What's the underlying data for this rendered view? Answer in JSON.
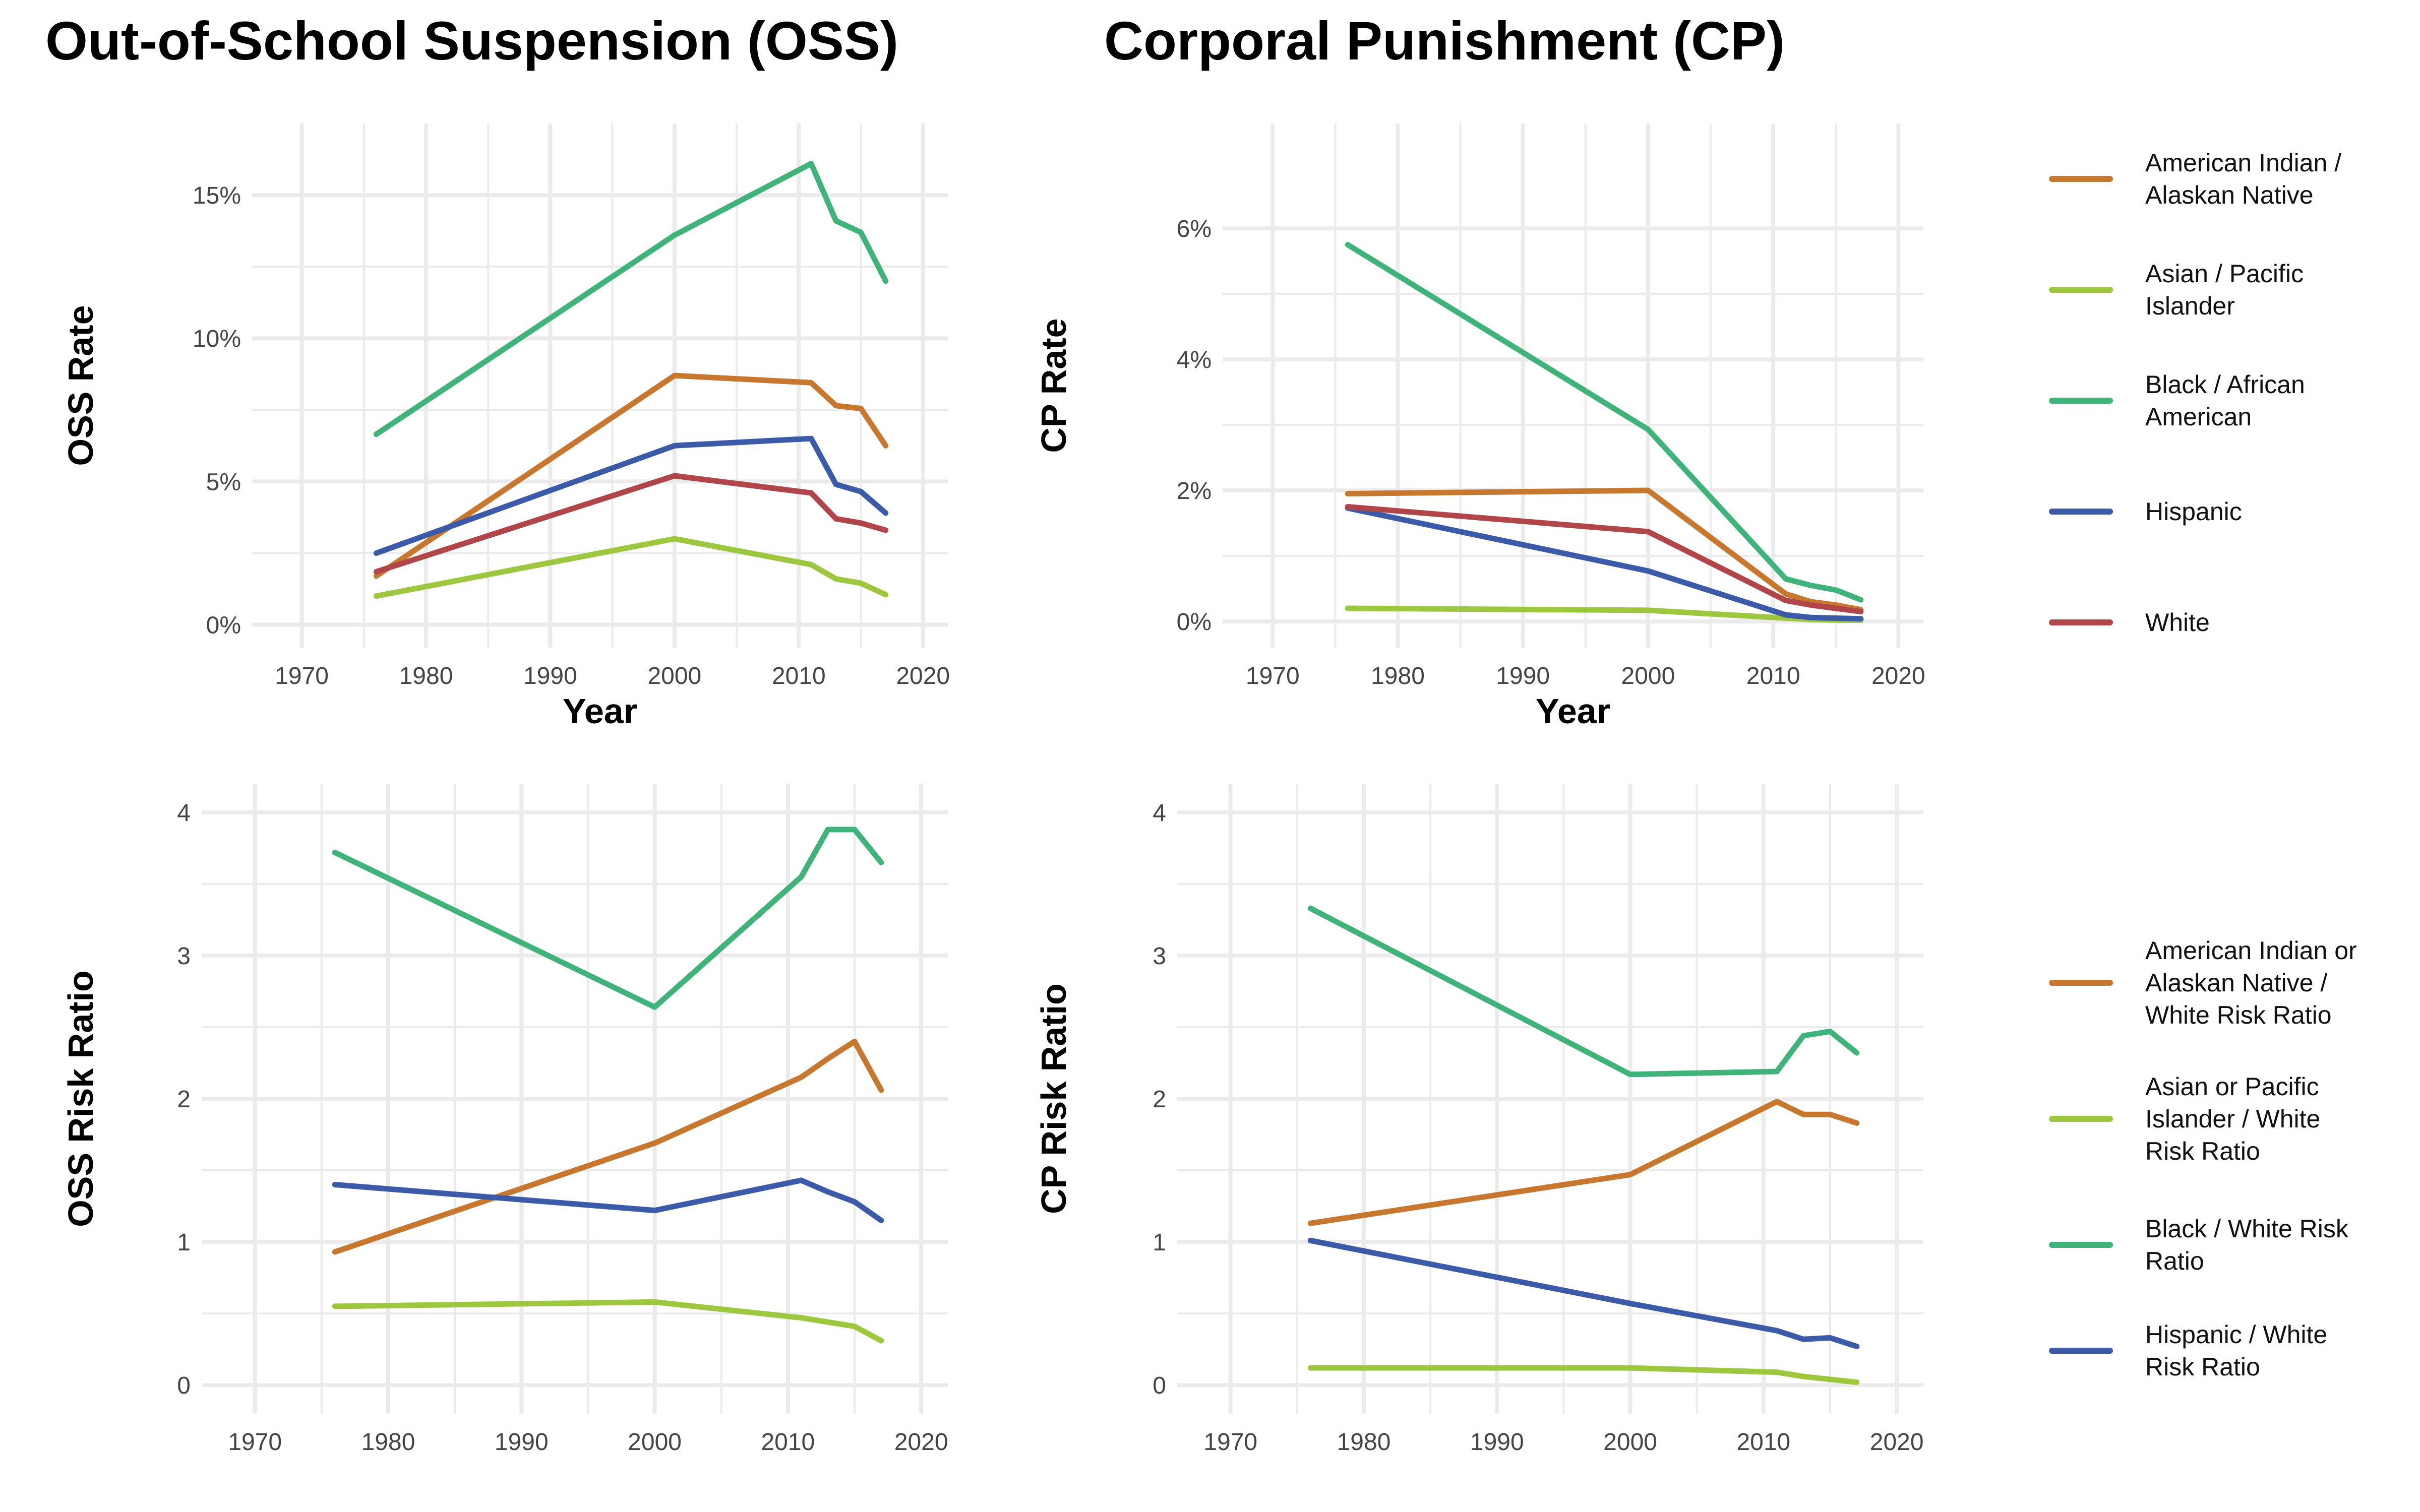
{
  "titles": {
    "oss": "Out-of-School Suspension (OSS)",
    "cp": "Corporal Punishment (CP)"
  },
  "colors": {
    "american_indian": "#C8772E",
    "asian": "#9DC73E",
    "black": "#3FB37A",
    "hispanic": "#3B5AA7",
    "white": "#B0464A",
    "grid": "#EBEBEB"
  },
  "legends": {
    "rates": [
      {
        "label": [
          "American Indian /",
          "Alaskan Native"
        ],
        "color": "#C8772E"
      },
      {
        "label": [
          "Asian / Pacific",
          "Islander"
        ],
        "color": "#9DC73E"
      },
      {
        "label": [
          "Black / African",
          "American"
        ],
        "color": "#3FB37A"
      },
      {
        "label": [
          "Hispanic"
        ],
        "color": "#3B5AA7"
      },
      {
        "label": [
          "White"
        ],
        "color": "#B0464A"
      }
    ],
    "ratios": [
      {
        "label": [
          "American Indian or",
          "Alaskan Native /",
          "White Risk Ratio"
        ],
        "color": "#C8772E"
      },
      {
        "label": [
          "Asian or Pacific",
          "Islander / White",
          "Risk Ratio"
        ],
        "color": "#9DC73E"
      },
      {
        "label": [
          "Black / White Risk",
          "Ratio"
        ],
        "color": "#3FB37A"
      },
      {
        "label": [
          "Hispanic / White",
          "Risk Ratio"
        ],
        "color": "#3B5AA7"
      }
    ]
  },
  "chart_data": [
    {
      "id": "oss-rate",
      "type": "line",
      "xlabel": "Year",
      "ylabel": "OSS Rate",
      "xlim": [
        1966,
        2022
      ],
      "ylim": [
        -0.8,
        17.5
      ],
      "xticks": [
        1970,
        1980,
        1990,
        2000,
        2010,
        2020
      ],
      "yticks": [
        0,
        5,
        10,
        15
      ],
      "ytick_labels": [
        "0%",
        "5%",
        "10%",
        "15%"
      ],
      "x": [
        1976,
        2000,
        2011,
        2013,
        2015,
        2017
      ],
      "series": [
        {
          "key": "american_indian",
          "values": [
            1.7,
            8.7,
            8.45,
            7.65,
            7.55,
            6.25
          ]
        },
        {
          "key": "asian",
          "values": [
            1.0,
            3.0,
            2.1,
            1.6,
            1.45,
            1.05
          ]
        },
        {
          "key": "black",
          "values": [
            6.65,
            13.6,
            16.1,
            14.1,
            13.7,
            12.0
          ]
        },
        {
          "key": "hispanic",
          "values": [
            2.5,
            6.25,
            6.5,
            4.9,
            4.65,
            3.9
          ]
        },
        {
          "key": "white",
          "values": [
            1.85,
            5.2,
            4.6,
            3.7,
            3.55,
            3.3
          ]
        }
      ]
    },
    {
      "id": "cp-rate",
      "type": "line",
      "xlabel": "Year",
      "ylabel": "CP Rate",
      "xlim": [
        1966,
        2022
      ],
      "ylim": [
        -0.4,
        7.6
      ],
      "xticks": [
        1970,
        1980,
        1990,
        2000,
        2010,
        2020
      ],
      "yticks": [
        0,
        2,
        4,
        6
      ],
      "ytick_labels": [
        "0%",
        "2%",
        "4%",
        "6%"
      ],
      "x": [
        1976,
        2000,
        2011,
        2013,
        2015,
        2017
      ],
      "series": [
        {
          "key": "american_indian",
          "values": [
            1.95,
            2.0,
            0.42,
            0.3,
            0.25,
            0.18
          ]
        },
        {
          "key": "asian",
          "values": [
            0.2,
            0.17,
            0.05,
            0.03,
            0.02,
            0.02
          ]
        },
        {
          "key": "black",
          "values": [
            5.75,
            2.93,
            0.65,
            0.55,
            0.48,
            0.33
          ]
        },
        {
          "key": "hispanic",
          "values": [
            1.73,
            0.77,
            0.1,
            0.06,
            0.05,
            0.04
          ]
        },
        {
          "key": "white",
          "values": [
            1.75,
            1.37,
            0.32,
            0.25,
            0.2,
            0.15
          ]
        }
      ]
    },
    {
      "id": "oss-ratio",
      "type": "line",
      "xlabel": "",
      "ylabel": "OSS Risk Ratio",
      "xlim": [
        1966,
        2022
      ],
      "ylim": [
        -0.2,
        4.2
      ],
      "xticks": [
        1970,
        1980,
        1990,
        2000,
        2010,
        2020
      ],
      "yticks": [
        0,
        1,
        2,
        3,
        4
      ],
      "ytick_labels": [
        "0",
        "1",
        "2",
        "3",
        "4"
      ],
      "x": [
        1976,
        2000,
        2011,
        2013,
        2015,
        2017
      ],
      "series": [
        {
          "key": "american_indian",
          "values": [
            0.93,
            1.69,
            2.15,
            2.28,
            2.4,
            2.06
          ]
        },
        {
          "key": "asian",
          "values": [
            0.55,
            0.58,
            0.47,
            0.44,
            0.41,
            0.31
          ]
        },
        {
          "key": "black",
          "values": [
            3.72,
            2.64,
            3.55,
            3.88,
            3.88,
            3.65
          ]
        },
        {
          "key": "hispanic",
          "values": [
            1.4,
            1.22,
            1.43,
            1.35,
            1.28,
            1.15
          ]
        }
      ]
    },
    {
      "id": "cp-ratio",
      "type": "line",
      "xlabel": "",
      "ylabel": "CP Risk Ratio",
      "xlim": [
        1966,
        2022
      ],
      "ylim": [
        -0.2,
        4.2
      ],
      "xticks": [
        1970,
        1980,
        1990,
        2000,
        2010,
        2020
      ],
      "yticks": [
        0,
        1,
        2,
        3,
        4
      ],
      "ytick_labels": [
        "0",
        "1",
        "2",
        "3",
        "4"
      ],
      "x": [
        1976,
        2000,
        2011,
        2013,
        2015,
        2017
      ],
      "series": [
        {
          "key": "american_indian",
          "values": [
            1.13,
            1.47,
            1.98,
            1.89,
            1.89,
            1.83
          ]
        },
        {
          "key": "asian",
          "values": [
            0.12,
            0.12,
            0.09,
            0.06,
            0.04,
            0.02
          ]
        },
        {
          "key": "black",
          "values": [
            3.33,
            2.17,
            2.19,
            2.44,
            2.47,
            2.32
          ]
        },
        {
          "key": "hispanic",
          "values": [
            1.01,
            0.57,
            0.38,
            0.32,
            0.33,
            0.27
          ]
        }
      ]
    }
  ]
}
